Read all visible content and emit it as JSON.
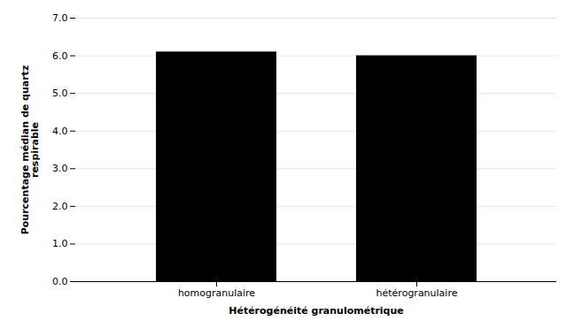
{
  "chart_data": {
    "type": "bar",
    "categories": [
      "homogranulaire",
      "hétérogranulaire"
    ],
    "values": [
      6.1,
      6.0
    ],
    "xlabel": "Hétérogénéité granulométrique",
    "ylabel": "Pourcentage médian de quartz\nrespirable",
    "ylim": [
      0.0,
      7.0
    ],
    "yticks": [
      {
        "value": 0,
        "label": "0.0"
      },
      {
        "value": 1,
        "label": "1.0"
      },
      {
        "value": 2,
        "label": "2.0"
      },
      {
        "value": 3,
        "label": "3.0"
      },
      {
        "value": 4,
        "label": "4.0"
      },
      {
        "value": 5,
        "label": "5.0"
      },
      {
        "value": 6,
        "label": "6.0"
      },
      {
        "value": 7,
        "label": "7.0"
      }
    ],
    "grid": true
  }
}
